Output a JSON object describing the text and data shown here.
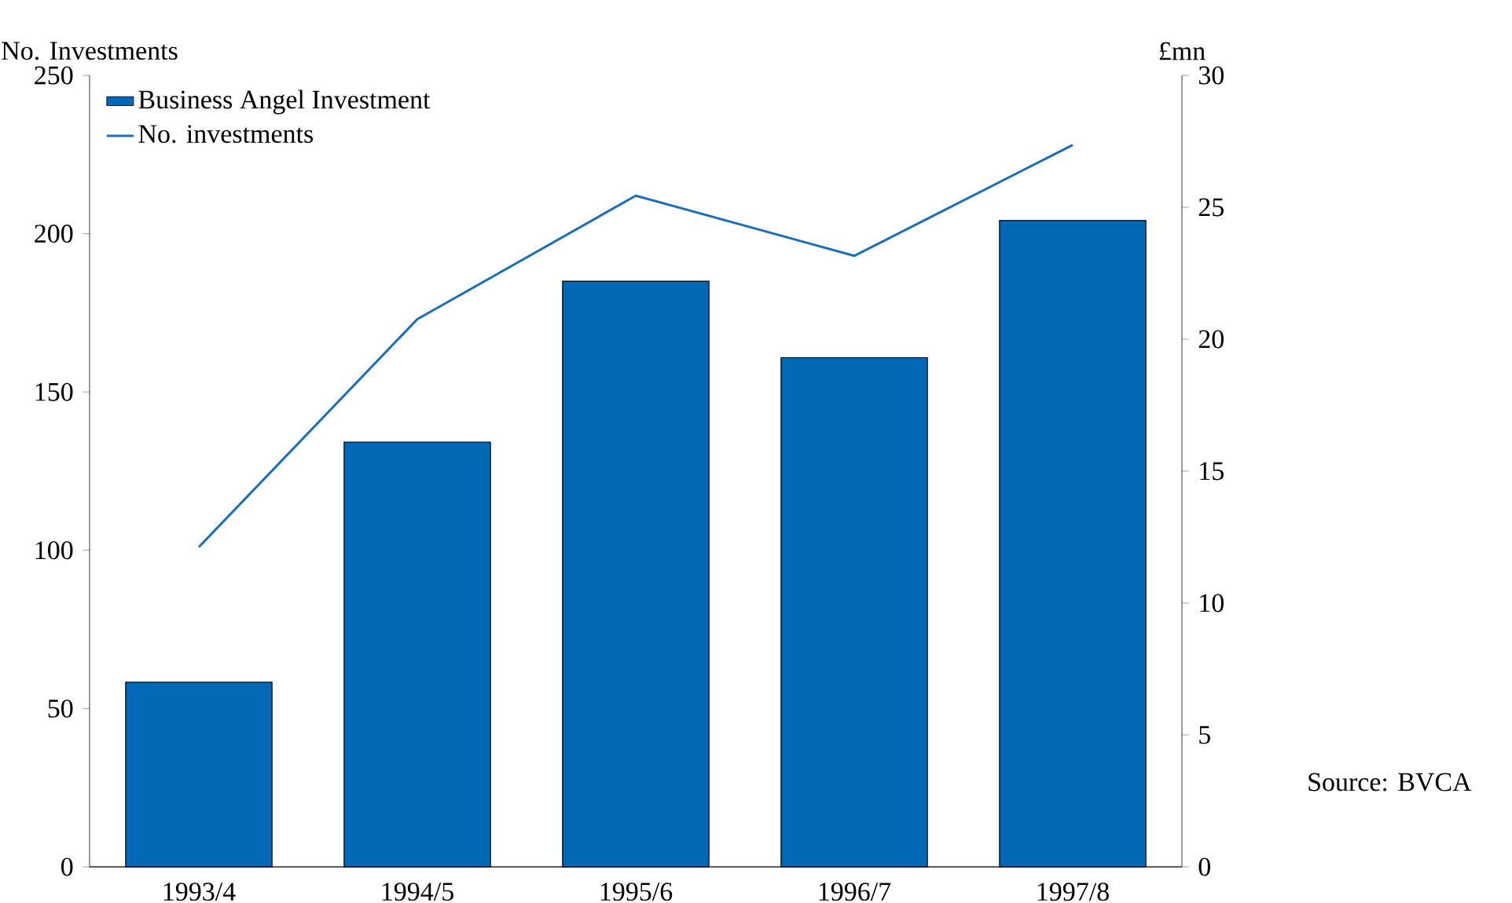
{
  "chart_data": {
    "type": "bar",
    "ylabel": "No. Investments",
    "y2label": "£mn",
    "categories": [
      "1993/4",
      "1994/5",
      "1995/6",
      "1996/7",
      "1997/8"
    ],
    "series": [
      {
        "name": "Business Angel Investment",
        "axis": "y2",
        "color": "#0068b5",
        "values": [
          7.0,
          16.1,
          22.2,
          19.3,
          24.5
        ]
      },
      {
        "name": "No. investments",
        "type": "line",
        "color": "#1a6fb8",
        "values": [
          101,
          173,
          212,
          193,
          228
        ]
      }
    ],
    "ylim": [
      0,
      250
    ],
    "yticks": [
      0,
      50,
      100,
      150,
      200,
      250
    ],
    "y2lim": [
      0,
      30
    ],
    "y2ticks": [
      0,
      5,
      10,
      15,
      20,
      25,
      30
    ],
    "legend": "top left",
    "annotations": [
      "Source:  BVCA"
    ]
  }
}
